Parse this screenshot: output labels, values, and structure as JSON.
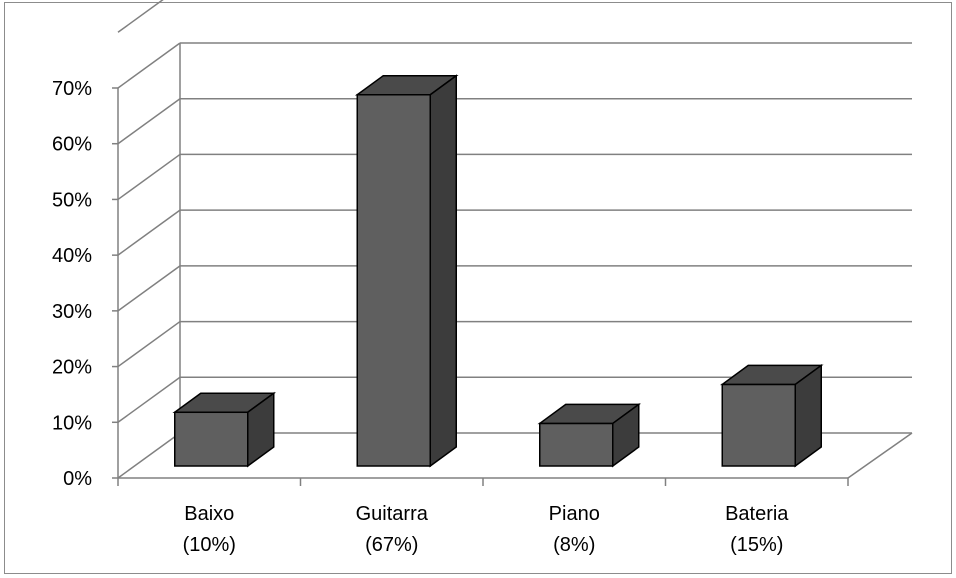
{
  "chart_data": {
    "type": "bar",
    "style": "3d-column",
    "categories": [
      {
        "name": "Baixo",
        "label": "(10%)"
      },
      {
        "name": "Guitarra",
        "label": "(67%)"
      },
      {
        "name": "Piano",
        "label": "(8%)"
      },
      {
        "name": "Bateria",
        "label": "(15%)"
      }
    ],
    "values": [
      10,
      67,
      8,
      15
    ],
    "yticks": [
      "0%",
      "10%",
      "20%",
      "30%",
      "40%",
      "50%",
      "60%",
      "70%"
    ],
    "ylim": [
      0,
      70
    ],
    "grid": true,
    "legend": false,
    "colors": {
      "bar_front": "#5f5f5f",
      "bar_top": "#4a4a4a",
      "bar_side": "#3c3c3c",
      "bar_outline": "#000000",
      "grid": "#808080",
      "axis": "#808080"
    }
  }
}
